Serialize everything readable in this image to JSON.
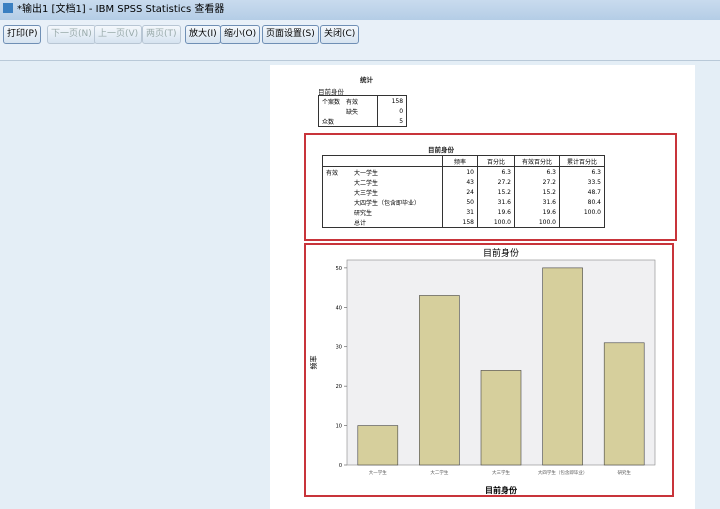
{
  "window": {
    "title": "*输出1 [文档1] - IBM SPSS Statistics 查看器"
  },
  "toolbar": [
    {
      "label": "打印(P)",
      "enabled": true
    },
    {
      "label": "下一页(N)",
      "enabled": false
    },
    {
      "label": "上一页(V)",
      "enabled": false
    },
    {
      "label": "两页(T)",
      "enabled": false
    },
    {
      "label": "放大(I)",
      "enabled": true
    },
    {
      "label": "缩小(O)",
      "enabled": true
    },
    {
      "label": "页面设置(S)",
      "enabled": true
    },
    {
      "label": "关闭(C)",
      "enabled": true
    }
  ],
  "stats": {
    "title": "统计",
    "subtitle": "目前身份",
    "rows": [
      [
        "个案数",
        "有效",
        "158"
      ],
      [
        "",
        "缺失",
        "0"
      ],
      [
        "众数",
        "",
        "5"
      ]
    ]
  },
  "freq": {
    "title": "目前身份",
    "headers": [
      "",
      "",
      "频率",
      "百分比",
      "有效百分比",
      "累计百分比"
    ],
    "rows": [
      [
        "有效",
        "大一学生",
        "10",
        "6.3",
        "6.3",
        "6.3"
      ],
      [
        "",
        "大二学生",
        "43",
        "27.2",
        "27.2",
        "33.5"
      ],
      [
        "",
        "大三学生",
        "24",
        "15.2",
        "15.2",
        "48.7"
      ],
      [
        "",
        "大四学生（包含即毕业）",
        "50",
        "31.6",
        "31.6",
        "80.4"
      ],
      [
        "",
        "研究生",
        "31",
        "19.6",
        "19.6",
        "100.0"
      ],
      [
        "",
        "总计",
        "158",
        "100.0",
        "100.0",
        ""
      ]
    ]
  },
  "chart_data": {
    "type": "bar",
    "title": "目前身份",
    "xlabel": "目前身份",
    "ylabel": "频率",
    "categories": [
      "大一学生",
      "大二学生",
      "大三学生",
      "大四学生（包含即毕业）",
      "研究生"
    ],
    "values": [
      10,
      43,
      24,
      50,
      31
    ],
    "yticks": [
      "0",
      "10",
      "20",
      "30",
      "40",
      "50"
    ],
    "ylim": [
      0,
      52
    ],
    "bar_color": "#d6cf9c",
    "plot_bg": "#f0f0f2"
  },
  "colors": {
    "highlight": "#c8343a"
  }
}
